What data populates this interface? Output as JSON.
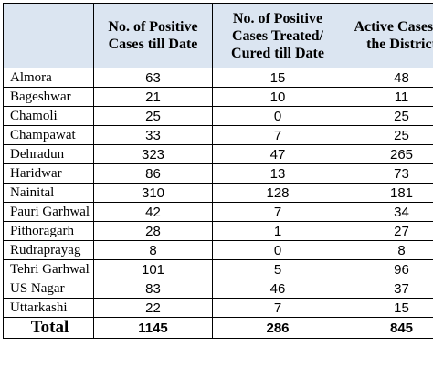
{
  "table": {
    "header": [
      "",
      "No. of Positive Cases till Date",
      "No. of Positive Cases Treated/ Cured till Date",
      "Active Cases in the District"
    ],
    "rows": [
      [
        "Almora",
        63,
        15,
        48
      ],
      [
        "Bageshwar",
        21,
        10,
        11
      ],
      [
        "Chamoli",
        25,
        0,
        25
      ],
      [
        "Champawat",
        33,
        7,
        25
      ],
      [
        "Dehradun",
        323,
        47,
        265
      ],
      [
        "Haridwar",
        86,
        13,
        73
      ],
      [
        "Nainital",
        310,
        128,
        181
      ],
      [
        "Pauri Garhwal",
        42,
        7,
        34
      ],
      [
        "Pithoragarh",
        28,
        1,
        27
      ],
      [
        "Rudraprayag",
        8,
        0,
        8
      ],
      [
        "Tehri Garhwal",
        101,
        5,
        96
      ],
      [
        "US Nagar",
        83,
        46,
        37
      ],
      [
        "Uttarkashi",
        22,
        7,
        15
      ]
    ],
    "total": [
      "Total",
      1145,
      286,
      845
    ]
  }
}
